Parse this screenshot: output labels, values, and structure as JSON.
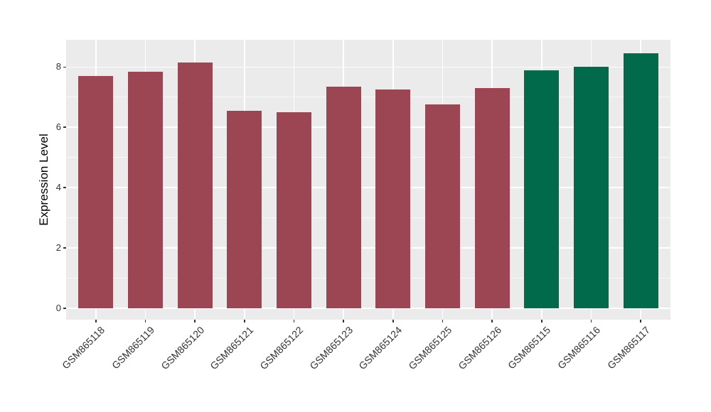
{
  "figure": {
    "background": "#ffffff",
    "panel_background": "#ebebeb",
    "gridline_color": "#ffffff",
    "tick_color": "#333333",
    "axis_text_color": "#333333"
  },
  "chart_data": {
    "type": "bar",
    "title": "",
    "xlabel": "",
    "ylabel": "Expression Level",
    "categories": [
      "GSM865118",
      "GSM865119",
      "GSM865120",
      "GSM865121",
      "GSM865122",
      "GSM865123",
      "GSM865124",
      "GSM865125",
      "GSM865126",
      "GSM865115",
      "GSM865116",
      "GSM865117"
    ],
    "values": [
      7.7,
      7.85,
      8.15,
      6.55,
      6.5,
      7.35,
      7.25,
      6.75,
      7.3,
      7.9,
      8.0,
      8.45
    ],
    "bar_colors": [
      "#9B4652",
      "#9B4652",
      "#9B4652",
      "#9B4652",
      "#9B4652",
      "#9B4652",
      "#9B4652",
      "#9B4652",
      "#9B4652",
      "#006A4B",
      "#006A4B",
      "#006A4B"
    ],
    "group_colors": {
      "group1": "#9B4652",
      "group2": "#006A4B"
    },
    "yticks": [
      0,
      2,
      4,
      6,
      8
    ],
    "yticks_minor": [
      1,
      3,
      5,
      7
    ],
    "ylim": [
      -0.4,
      8.9
    ],
    "grid": "on",
    "legend": "none",
    "x_tick_rotation_deg": 45
  }
}
